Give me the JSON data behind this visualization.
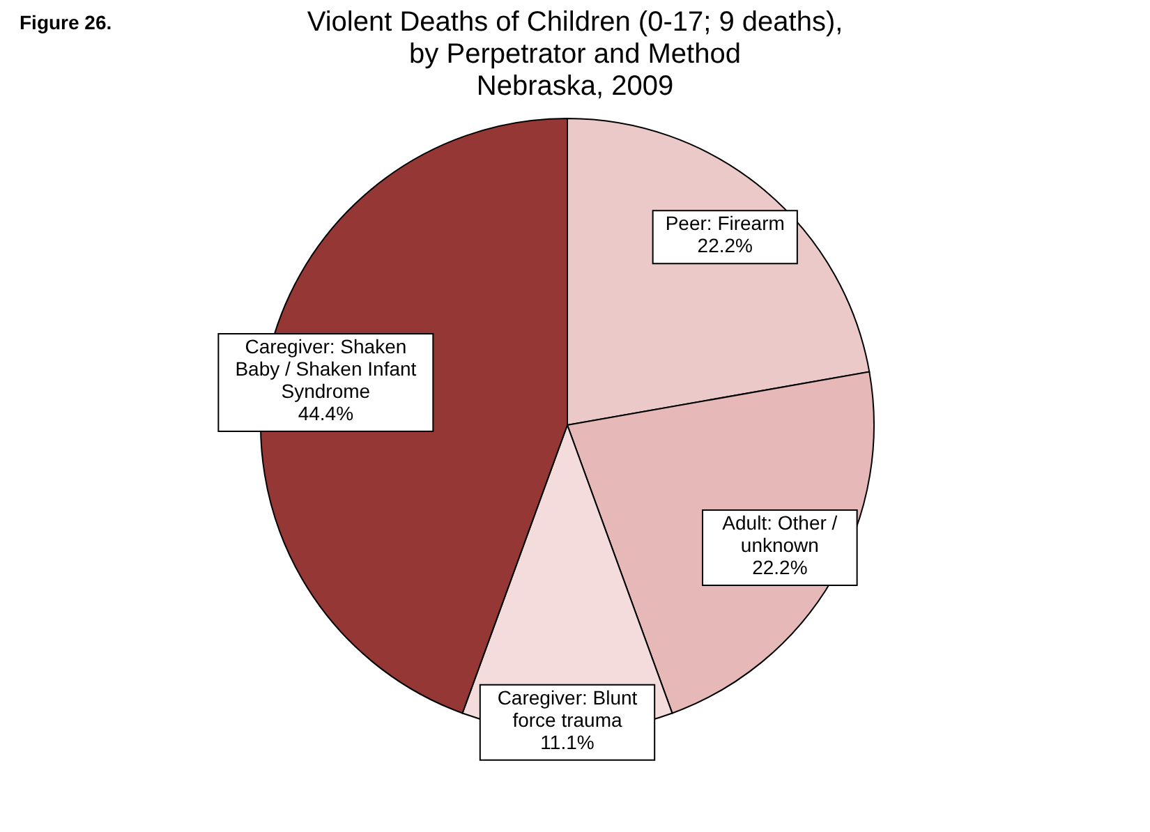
{
  "chart_data": {
    "type": "pie",
    "title": "Violent Deaths of Children (0-17; 9 deaths), by Perpetrator and Method",
    "subtitle": "Nebraska, 2009",
    "categories": [
      "Peer: Firearm",
      "Adult: Other / unknown",
      "Caregiver: Blunt force trauma",
      "Caregiver: Shaken Baby / Shaken Infant Syndrome"
    ],
    "values": [
      22.2,
      22.2,
      11.1,
      44.4
    ],
    "colors": [
      "#ebc9c9",
      "#e6b8b7",
      "#f5dcdc",
      "#953735"
    ],
    "value_labels": [
      "22.2%",
      "22.2%",
      "11.1%",
      "44.4%"
    ],
    "annotations": [
      "Figure 26."
    ]
  }
}
